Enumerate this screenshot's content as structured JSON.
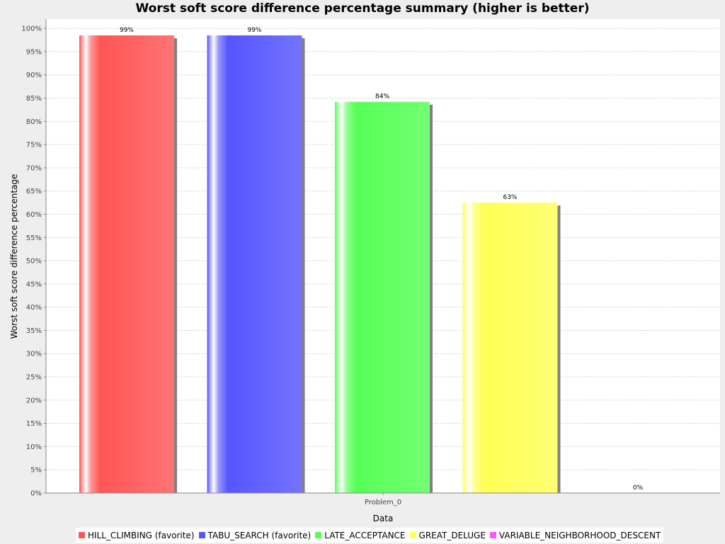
{
  "chart_data": {
    "type": "bar",
    "title": "Worst soft score difference percentage summary (higher is better)",
    "xlabel": "Data",
    "ylabel": "Worst soft score difference percentage",
    "categories": [
      "Problem_0"
    ],
    "y_tick_labels": [
      "0%",
      "5%",
      "10%",
      "15%",
      "20%",
      "25%",
      "30%",
      "35%",
      "40%",
      "45%",
      "50%",
      "55%",
      "60%",
      "65%",
      "70%",
      "75%",
      "80%",
      "85%",
      "90%",
      "95%",
      "100%"
    ],
    "ylim": [
      0,
      102
    ],
    "grid": true,
    "legend_position": "bottom",
    "series": [
      {
        "name": "HILL_CLIMBING (favorite)",
        "values": [
          98.5
        ],
        "data_label": "99%",
        "color": "#ff5555"
      },
      {
        "name": "TABU_SEARCH (favorite)",
        "values": [
          98.5
        ],
        "data_label": "99%",
        "color": "#5555ff"
      },
      {
        "name": "LATE_ACCEPTANCE",
        "values": [
          84.2
        ],
        "data_label": "84%",
        "color": "#55ff55"
      },
      {
        "name": "GREAT_DELUGE",
        "values": [
          62.5
        ],
        "data_label": "63%",
        "color": "#ffff55"
      },
      {
        "name": "VARIABLE_NEIGHBORHOOD_DESCENT",
        "values": [
          0
        ],
        "data_label": "0%",
        "color": "#ff55ff"
      }
    ]
  }
}
